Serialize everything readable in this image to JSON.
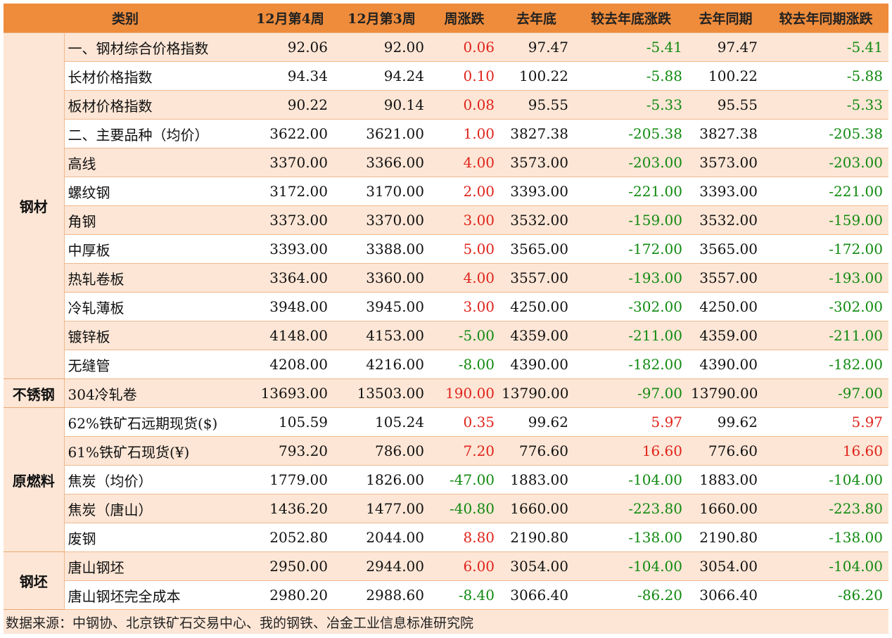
{
  "headers": [
    "类别",
    "12月第4周",
    "12月第3周",
    "周涨跌",
    "去年底",
    "较去年底涨跌",
    "去年同期",
    "较去年同期涨跌"
  ],
  "groups": [
    {
      "label": "钢材",
      "rows": [
        {
          "name": "一、钢材综合价格指数",
          "w4": "92.06",
          "w3": "92.00",
          "wchg": "0.06",
          "ylast": "97.47",
          "ychg": "-5.41",
          "yoy": "97.47",
          "yoychg": "-5.41",
          "dir": [
            "up",
            "down",
            "down"
          ]
        },
        {
          "name": "长材价格指数",
          "w4": "94.34",
          "w3": "94.24",
          "wchg": "0.10",
          "ylast": "100.22",
          "ychg": "-5.88",
          "yoy": "100.22",
          "yoychg": "-5.88",
          "dir": [
            "up",
            "down",
            "down"
          ]
        },
        {
          "name": "板材价格指数",
          "w4": "90.22",
          "w3": "90.14",
          "wchg": "0.08",
          "ylast": "95.55",
          "ychg": "-5.33",
          "yoy": "95.55",
          "yoychg": "-5.33",
          "dir": [
            "up",
            "down",
            "down"
          ]
        },
        {
          "name": "二、主要品种（均价）",
          "w4": "3622.00",
          "w3": "3621.00",
          "wchg": "1.00",
          "ylast": "3827.38",
          "ychg": "-205.38",
          "yoy": "3827.38",
          "yoychg": "-205.38",
          "dir": [
            "up",
            "down",
            "down"
          ]
        },
        {
          "name": "高线",
          "w4": "3370.00",
          "w3": "3366.00",
          "wchg": "4.00",
          "ylast": "3573.00",
          "ychg": "-203.00",
          "yoy": "3573.00",
          "yoychg": "-203.00",
          "dir": [
            "up",
            "down",
            "down"
          ]
        },
        {
          "name": "螺纹钢",
          "w4": "3172.00",
          "w3": "3170.00",
          "wchg": "2.00",
          "ylast": "3393.00",
          "ychg": "-221.00",
          "yoy": "3393.00",
          "yoychg": "-221.00",
          "dir": [
            "up",
            "down",
            "down"
          ]
        },
        {
          "name": "角钢",
          "w4": "3373.00",
          "w3": "3370.00",
          "wchg": "3.00",
          "ylast": "3532.00",
          "ychg": "-159.00",
          "yoy": "3532.00",
          "yoychg": "-159.00",
          "dir": [
            "up",
            "down",
            "down"
          ]
        },
        {
          "name": "中厚板",
          "w4": "3393.00",
          "w3": "3388.00",
          "wchg": "5.00",
          "ylast": "3565.00",
          "ychg": "-172.00",
          "yoy": "3565.00",
          "yoychg": "-172.00",
          "dir": [
            "up",
            "down",
            "down"
          ]
        },
        {
          "name": "热轧卷板",
          "w4": "3364.00",
          "w3": "3360.00",
          "wchg": "4.00",
          "ylast": "3557.00",
          "ychg": "-193.00",
          "yoy": "3557.00",
          "yoychg": "-193.00",
          "dir": [
            "up",
            "down",
            "down"
          ]
        },
        {
          "name": "冷轧薄板",
          "w4": "3948.00",
          "w3": "3945.00",
          "wchg": "3.00",
          "ylast": "4250.00",
          "ychg": "-302.00",
          "yoy": "4250.00",
          "yoychg": "-302.00",
          "dir": [
            "up",
            "down",
            "down"
          ]
        },
        {
          "name": "镀锌板",
          "w4": "4148.00",
          "w3": "4153.00",
          "wchg": "-5.00",
          "ylast": "4359.00",
          "ychg": "-211.00",
          "yoy": "4359.00",
          "yoychg": "-211.00",
          "dir": [
            "down",
            "down",
            "down"
          ]
        },
        {
          "name": "无缝管",
          "w4": "4208.00",
          "w3": "4216.00",
          "wchg": "-8.00",
          "ylast": "4390.00",
          "ychg": "-182.00",
          "yoy": "4390.00",
          "yoychg": "-182.00",
          "dir": [
            "down",
            "down",
            "down"
          ]
        }
      ]
    },
    {
      "label": "不锈钢",
      "rows": [
        {
          "name": "304冷轧卷",
          "w4": "13693.00",
          "w3": "13503.00",
          "wchg": "190.00",
          "ylast": "13790.00",
          "ychg": "-97.00",
          "yoy": "13790.00",
          "yoychg": "-97.00",
          "dir": [
            "up",
            "down",
            "down"
          ]
        }
      ]
    },
    {
      "label": "原燃料",
      "rows": [
        {
          "name": "62%铁矿石远期现货($)",
          "w4": "105.59",
          "w3": "105.24",
          "wchg": "0.35",
          "ylast": "99.62",
          "ychg": "5.97",
          "yoy": "99.62",
          "yoychg": "5.97",
          "dir": [
            "up",
            "up",
            "up"
          ]
        },
        {
          "name": "61%铁矿石现货(¥)",
          "w4": "793.20",
          "w3": "786.00",
          "wchg": "7.20",
          "ylast": "776.60",
          "ychg": "16.60",
          "yoy": "776.60",
          "yoychg": "16.60",
          "dir": [
            "up",
            "up",
            "up"
          ]
        },
        {
          "name": "焦炭（均价）",
          "w4": "1779.00",
          "w3": "1826.00",
          "wchg": "-47.00",
          "ylast": "1883.00",
          "ychg": "-104.00",
          "yoy": "1883.00",
          "yoychg": "-104.00",
          "dir": [
            "down",
            "down",
            "down"
          ]
        },
        {
          "name": "焦炭（唐山）",
          "w4": "1436.20",
          "w3": "1477.00",
          "wchg": "-40.80",
          "ylast": "1660.00",
          "ychg": "-223.80",
          "yoy": "1660.00",
          "yoychg": "-223.80",
          "dir": [
            "down",
            "down",
            "down"
          ]
        },
        {
          "name": "废钢",
          "w4": "2052.80",
          "w3": "2044.00",
          "wchg": "8.80",
          "ylast": "2190.80",
          "ychg": "-138.00",
          "yoy": "2190.80",
          "yoychg": "-138.00",
          "dir": [
            "up",
            "down",
            "down"
          ]
        }
      ]
    },
    {
      "label": "钢坯",
      "rows": [
        {
          "name": "唐山钢坯",
          "w4": "2950.00",
          "w3": "2944.00",
          "wchg": "6.00",
          "ylast": "3054.00",
          "ychg": "-104.00",
          "yoy": "3054.00",
          "yoychg": "-104.00",
          "dir": [
            "up",
            "down",
            "down"
          ]
        },
        {
          "name": "唐山钢坯完全成本",
          "w4": "2980.20",
          "w3": "2988.60",
          "wchg": "-8.40",
          "ylast": "3066.40",
          "ychg": "-86.20",
          "yoy": "3066.40",
          "yoychg": "-86.20",
          "dir": [
            "down",
            "down",
            "down"
          ]
        }
      ]
    }
  ],
  "footer": "数据来源：中钢协、北京铁矿石交易中心、我的钢铁、冶金工业信息标准研究院",
  "colors": {
    "header_bg": "#ef8c3b",
    "band": "#fde6d6",
    "up": "#e0231b",
    "down": "#108a10"
  }
}
